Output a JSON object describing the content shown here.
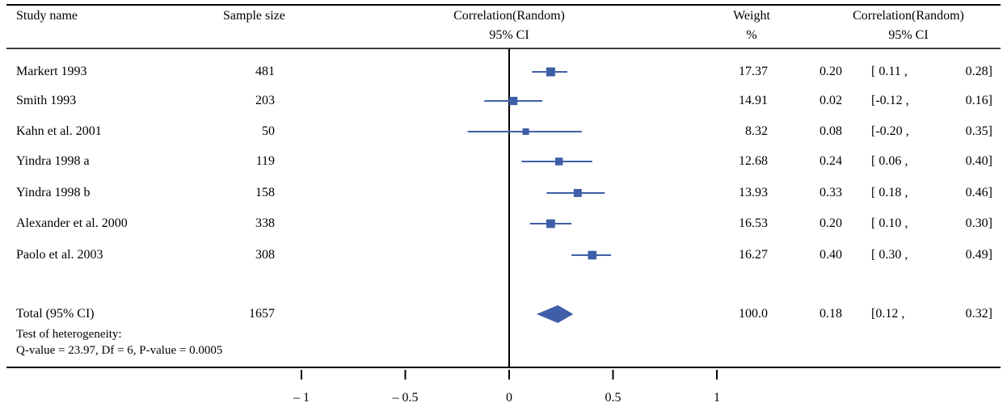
{
  "header": {
    "study": "Study name",
    "sample": "Sample size",
    "plot_line1": "Correlation(Random)",
    "plot_line2": "95% CI",
    "weight_line1": "Weight",
    "weight_line2": "%",
    "ci_line1": "Correlation(Random)",
    "ci_line2": "95% CI"
  },
  "colors": {
    "marker": "#3e5ea8",
    "axis": "#000000"
  },
  "heterogeneity": {
    "line1": "Test of heterogeneity:",
    "line2": "Q-value = 23.97, Df = 6, P-value =  0.0005"
  },
  "chart_data": {
    "type": "forest",
    "xlim": [
      -1,
      1
    ],
    "ticks": [
      -1,
      -0.5,
      0,
      0.5,
      1
    ],
    "tick_labels": [
      "– 1",
      "– 0.5",
      "0",
      "0.5",
      "1"
    ],
    "studies": [
      {
        "name": "Markert 1993",
        "n": "481",
        "weight": "17.37",
        "est": 0.2,
        "lo": 0.11,
        "hi": 0.28,
        "est_label": "0.20",
        "lo_label": "[ 0.11 ,",
        "hi_label": "0.28]"
      },
      {
        "name": "Smith 1993",
        "n": "203",
        "weight": "14.91",
        "est": 0.02,
        "lo": -0.12,
        "hi": 0.16,
        "est_label": "0.02",
        "lo_label": "[-0.12 ,",
        "hi_label": "0.16]"
      },
      {
        "name": "Kahn et al. 2001",
        "n": "50",
        "weight": "8.32",
        "est": 0.08,
        "lo": -0.2,
        "hi": 0.35,
        "est_label": "0.08",
        "lo_label": "[-0.20 ,",
        "hi_label": "0.35]"
      },
      {
        "name": "Yindra 1998 a",
        "n": "119",
        "weight": "12.68",
        "est": 0.24,
        "lo": 0.06,
        "hi": 0.4,
        "est_label": "0.24",
        "lo_label": "[ 0.06 ,",
        "hi_label": "0.40]"
      },
      {
        "name": "Yindra 1998 b",
        "n": "158",
        "weight": "13.93",
        "est": 0.33,
        "lo": 0.18,
        "hi": 0.46,
        "est_label": "0.33",
        "lo_label": "[ 0.18 ,",
        "hi_label": "0.46]"
      },
      {
        "name": "Alexander et al. 2000",
        "n": "338",
        "weight": "16.53",
        "est": 0.2,
        "lo": 0.1,
        "hi": 0.3,
        "est_label": "0.20",
        "lo_label": "[ 0.10 ,",
        "hi_label": "0.30]"
      },
      {
        "name": "Paolo et al. 2003",
        "n": "308",
        "weight": "16.27",
        "est": 0.4,
        "lo": 0.3,
        "hi": 0.49,
        "est_label": "0.40",
        "lo_label": "[ 0.30 ,",
        "hi_label": "0.49]"
      }
    ],
    "total": {
      "name": "Total  (95% CI)",
      "n": "1657",
      "weight": "100.0",
      "est": 0.18,
      "lo": 0.12,
      "hi": 0.32,
      "est_label": "0.18",
      "lo_label": "[0.12 ,",
      "hi_label": "0.32]"
    }
  }
}
